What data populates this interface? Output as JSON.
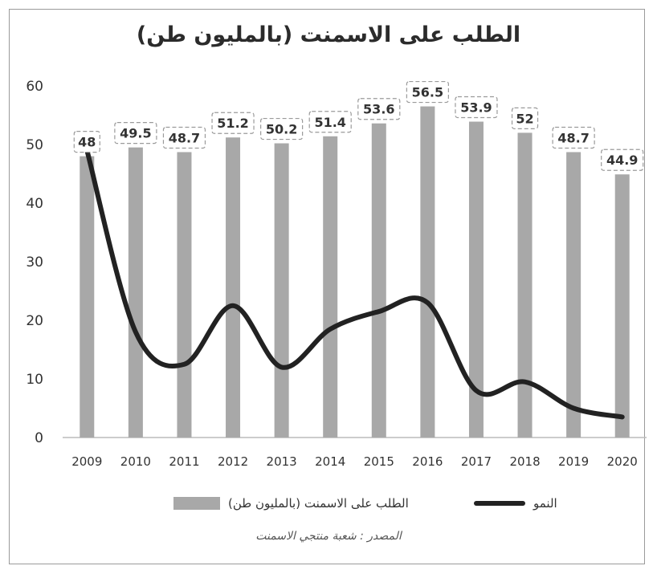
{
  "chart_data": {
    "type": "bar",
    "title": "الطلب على الاسمنت (بالمليون طن)",
    "categories": [
      "2009",
      "2010",
      "2011",
      "2012",
      "2013",
      "2014",
      "2015",
      "2016",
      "2017",
      "2018",
      "2019",
      "2020"
    ],
    "ylim": [
      0,
      60
    ],
    "yticks": [
      0,
      10,
      20,
      30,
      40,
      50,
      60
    ],
    "grid": false,
    "legend_position": "bottom",
    "series": [
      {
        "name": "الطلب على الاسمنت (بالمليون طن)",
        "type": "bar",
        "color": "#a8a8a8",
        "values": [
          48,
          49.5,
          48.7,
          51.2,
          50.2,
          51.4,
          53.6,
          56.5,
          53.9,
          52,
          48.7,
          44.9
        ],
        "data_labels": [
          "48",
          "49.5",
          "48.7",
          "51.2",
          "50.2",
          "51.4",
          "53.6",
          "56.5",
          "53.9",
          "52",
          "48.7",
          "44.9"
        ]
      },
      {
        "name": "النمو",
        "type": "line",
        "color": "#222222",
        "values": [
          49,
          18,
          12.5,
          22.5,
          12,
          18.5,
          21.5,
          23,
          8,
          9.5,
          5,
          3.5
        ]
      }
    ],
    "source_note": "المصدر : شعبة منتجي الاسمنت"
  }
}
